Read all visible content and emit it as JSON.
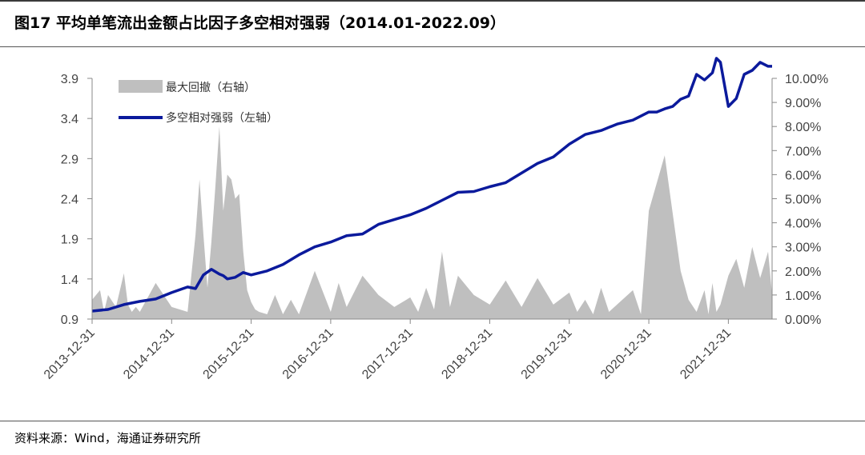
{
  "title": "图17 平均单笔流出金额占比因子多空相对强弱（2014.01-2022.09）",
  "source": "资料来源：Wind，海通证券研究所",
  "colors": {
    "line": "#0b1a9c",
    "area": "#bfbfbf"
  },
  "chart_data": {
    "type": "line",
    "grid": false,
    "legend_position": "top-left",
    "x_ticks": [
      "2013-12-31",
      "2014-12-31",
      "2015-12-31",
      "2016-12-31",
      "2017-12-31",
      "2018-12-31",
      "2019-12-31",
      "2020-12-31",
      "2021-12-31"
    ],
    "y_left": {
      "min": 0.9,
      "max": 3.9,
      "ticks": [
        "0.9",
        "1.4",
        "1.9",
        "2.4",
        "2.9",
        "3.4",
        "3.9"
      ]
    },
    "y_right": {
      "min": 0,
      "max": 10,
      "ticks": [
        "0.00%",
        "1.00%",
        "2.00%",
        "3.00%",
        "4.00%",
        "5.00%",
        "6.00%",
        "7.00%",
        "8.00%",
        "9.00%",
        "10.00%"
      ]
    },
    "series": [
      {
        "name": "最大回撤（右轴）",
        "axis": "right",
        "kind": "area",
        "x": [
          0,
          0.1,
          0.15,
          0.2,
          0.3,
          0.4,
          0.45,
          0.5,
          0.55,
          0.6,
          0.8,
          1.0,
          1.2,
          1.3,
          1.35,
          1.4,
          1.45,
          1.5,
          1.55,
          1.6,
          1.65,
          1.7,
          1.75,
          1.8,
          1.85,
          1.9,
          1.95,
          2.0,
          2.05,
          2.1,
          2.2,
          2.3,
          2.4,
          2.5,
          2.6,
          2.8,
          3.0,
          3.1,
          3.2,
          3.4,
          3.6,
          3.8,
          4.0,
          4.1,
          4.2,
          4.3,
          4.4,
          4.5,
          4.6,
          4.8,
          5.0,
          5.2,
          5.4,
          5.6,
          5.8,
          6.0,
          6.1,
          6.2,
          6.3,
          6.4,
          6.5,
          6.6,
          6.8,
          6.9,
          7.0,
          7.2,
          7.4,
          7.5,
          7.6,
          7.7,
          7.75,
          7.8,
          7.85,
          7.9,
          8.0,
          8.1,
          8.2,
          8.3,
          8.4,
          8.5,
          8.55
        ],
        "values": [
          0.8,
          1.2,
          0.3,
          1.0,
          0.5,
          1.9,
          0.6,
          0.3,
          0.5,
          0.3,
          1.5,
          0.5,
          0.3,
          3.5,
          5.8,
          3.5,
          1.3,
          3.2,
          5.5,
          8.0,
          4.5,
          6.0,
          5.8,
          5.0,
          5.2,
          2.8,
          1.2,
          0.7,
          0.4,
          0.3,
          0.2,
          1.0,
          0.2,
          0.8,
          0.2,
          2.0,
          0.3,
          1.5,
          0.5,
          1.8,
          1.0,
          0.5,
          0.9,
          0.3,
          1.3,
          0.4,
          2.8,
          0.5,
          1.8,
          1.0,
          0.6,
          1.6,
          0.5,
          1.7,
          0.6,
          1.1,
          0.3,
          0.8,
          0.2,
          1.3,
          0.3,
          0.6,
          1.2,
          0.2,
          4.5,
          6.8,
          2.0,
          0.8,
          0.3,
          1.2,
          0.2,
          1.5,
          0.3,
          0.6,
          1.8,
          2.5,
          1.3,
          3.0,
          1.7,
          2.8,
          1.0
        ]
      },
      {
        "name": "多空相对强弱（左轴）",
        "axis": "left",
        "kind": "line",
        "x": [
          0,
          0.2,
          0.4,
          0.6,
          0.8,
          1.0,
          1.2,
          1.3,
          1.4,
          1.5,
          1.6,
          1.65,
          1.7,
          1.8,
          1.9,
          2.0,
          2.2,
          2.4,
          2.6,
          2.8,
          3.0,
          3.2,
          3.4,
          3.6,
          3.8,
          4.0,
          4.2,
          4.4,
          4.6,
          4.8,
          5.0,
          5.2,
          5.4,
          5.6,
          5.8,
          6.0,
          6.2,
          6.4,
          6.6,
          6.8,
          7.0,
          7.1,
          7.2,
          7.3,
          7.4,
          7.5,
          7.6,
          7.7,
          7.8,
          7.85,
          7.9,
          8.0,
          8.1,
          8.2,
          8.3,
          8.4,
          8.5,
          8.55
        ],
        "values": [
          1.0,
          1.02,
          1.08,
          1.12,
          1.15,
          1.23,
          1.3,
          1.28,
          1.45,
          1.52,
          1.46,
          1.44,
          1.4,
          1.42,
          1.48,
          1.45,
          1.5,
          1.58,
          1.7,
          1.8,
          1.86,
          1.94,
          1.96,
          2.08,
          2.14,
          2.2,
          2.28,
          2.38,
          2.48,
          2.49,
          2.55,
          2.6,
          2.72,
          2.84,
          2.92,
          3.08,
          3.2,
          3.25,
          3.33,
          3.38,
          3.48,
          3.48,
          3.52,
          3.55,
          3.64,
          3.68,
          3.95,
          3.88,
          3.97,
          4.15,
          4.1,
          3.55,
          3.65,
          3.95,
          4.0,
          4.1,
          4.05,
          4.05
        ]
      }
    ]
  }
}
